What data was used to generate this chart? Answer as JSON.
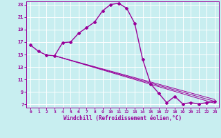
{
  "xlabel": "Windchill (Refroidissement éolien,°C)",
  "ylabel": "",
  "bg_color": "#c8eef0",
  "grid_color": "#ffffff",
  "line_color": "#990099",
  "marker": "D",
  "markersize": 2,
  "linewidth": 1.0,
  "xlim": [
    -0.5,
    23.5
  ],
  "ylim": [
    6.5,
    23.5
  ],
  "yticks": [
    7,
    9,
    11,
    13,
    15,
    17,
    19,
    21,
    23
  ],
  "xticks": [
    0,
    1,
    2,
    3,
    4,
    5,
    6,
    7,
    8,
    9,
    10,
    11,
    12,
    13,
    14,
    15,
    16,
    17,
    18,
    19,
    20,
    21,
    22,
    23
  ],
  "series": [
    {
      "x": [
        0,
        1,
        2,
        3,
        4,
        5,
        6,
        7,
        8,
        9,
        10,
        11,
        12,
        13,
        14,
        15,
        16,
        17,
        18,
        19,
        20,
        21,
        22,
        23
      ],
      "y": [
        16.5,
        15.5,
        14.9,
        14.8,
        16.9,
        17.0,
        18.4,
        19.3,
        20.2,
        22.0,
        23.0,
        23.2,
        22.4,
        20.0,
        14.2,
        10.3,
        8.8,
        7.3,
        8.3,
        7.1,
        7.3,
        7.1,
        7.3,
        7.5
      ],
      "has_markers": true
    },
    {
      "x": [
        3,
        23
      ],
      "y": [
        14.8,
        7.8
      ],
      "has_markers": false
    },
    {
      "x": [
        3,
        23
      ],
      "y": [
        14.8,
        7.5
      ],
      "has_markers": false
    },
    {
      "x": [
        3,
        23
      ],
      "y": [
        14.8,
        7.2
      ],
      "has_markers": false
    }
  ]
}
